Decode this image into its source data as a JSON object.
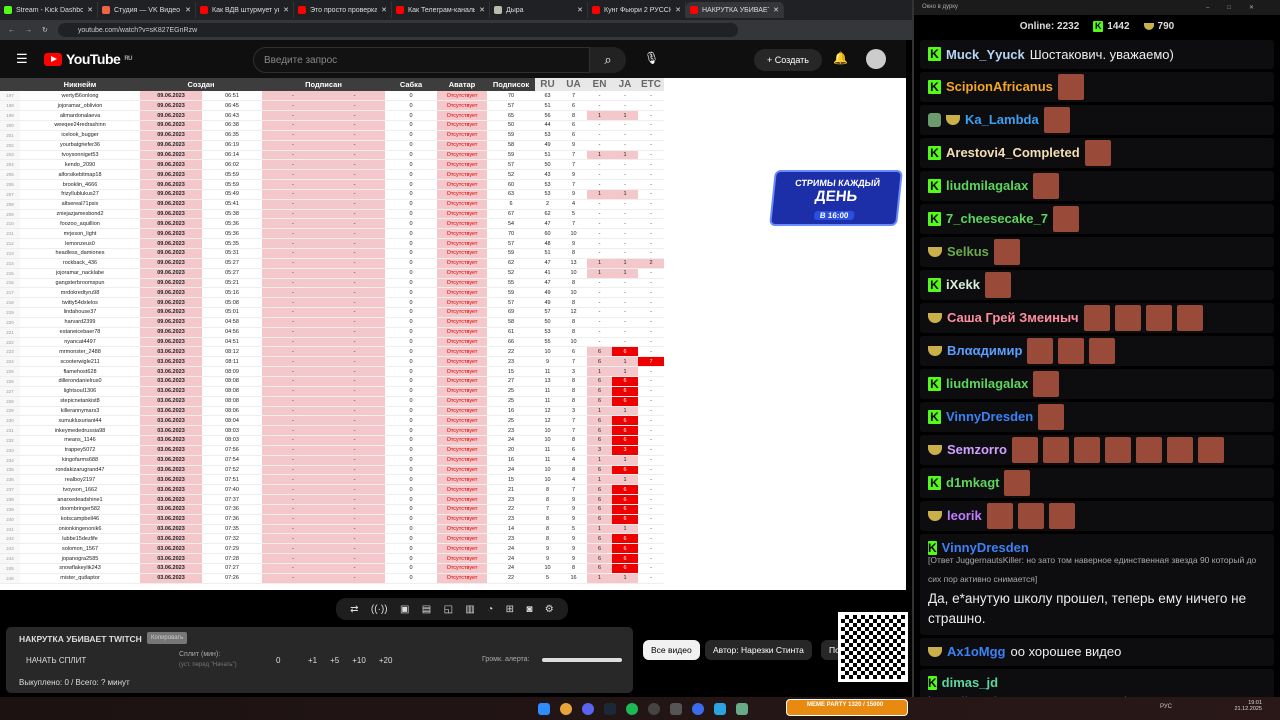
{
  "browser": {
    "tabs": [
      {
        "title": "Stream - Kick Dashboard",
        "color": "#53fc18"
      },
      {
        "title": "Студия — VK Видео Live",
        "color": "#e64"
      },
      {
        "title": "Как ВДВ штурмует укр",
        "color": "#f00"
      },
      {
        "title": "Это просто проверка",
        "color": "#f00"
      },
      {
        "title": "Как Телеграм-каналы",
        "color": "#f00"
      },
      {
        "title": "Дыра",
        "color": "#bba"
      },
      {
        "title": "Кунг Фьюри 2 РУССКАЯ",
        "color": "#f00"
      },
      {
        "title": "НАКРУТКА УБИВАЕТ",
        "color": "#f00",
        "active": true
      }
    ],
    "url": "youtube.com/watch?v=sK827EGnRzw"
  },
  "youtube": {
    "logo": "YouTube",
    "region": "RU",
    "search_placeholder": "Введите запрос",
    "create_label": "Создать"
  },
  "sheet": {
    "headers": [
      "Никнейм",
      "Создан",
      "Подписан",
      "Сабка",
      "Аватар",
      "Подписок",
      "RU",
      "UA",
      "EN",
      "JA",
      "ETC"
    ],
    "rows": [
      [
        "197",
        "wertyl56onlong",
        "09.06.2023",
        "06:51",
        "-",
        "-",
        "0",
        "Отсутствует",
        "70",
        "63",
        "7",
        "-",
        "-",
        "-"
      ],
      [
        "198",
        "jojoramar_oblivion",
        "09.06.2023",
        "06:45",
        "-",
        "-",
        "0",
        "Отсутствует",
        "57",
        "51",
        "6",
        "-",
        "-",
        "-"
      ],
      [
        "199",
        "alimardonalaeva",
        "09.06.2023",
        "06:43",
        "-",
        "-",
        "0",
        "Отсутствует",
        "65",
        "56",
        "8",
        "1",
        "1",
        "-"
      ],
      [
        "200",
        "weeqee24redrashinn",
        "09.06.2023",
        "06:38",
        "-",
        "-",
        "0",
        "Отсутствует",
        "50",
        "44",
        "6",
        "-",
        "-",
        "-"
      ],
      [
        "201",
        "icelook_bugger",
        "09.06.2023",
        "06:35",
        "-",
        "-",
        "0",
        "Отсутствует",
        "59",
        "53",
        "6",
        "-",
        "-",
        "-"
      ],
      [
        "202",
        "yourbatgriefer36",
        "09.06.2023",
        "06:19",
        "-",
        "-",
        "0",
        "Отсутствует",
        "58",
        "49",
        "9",
        "-",
        "-",
        "-"
      ],
      [
        "203",
        "tvoysonniget53",
        "09.06.2023",
        "06:14",
        "-",
        "-",
        "0",
        "Отсутствует",
        "59",
        "51",
        "7",
        "1",
        "1",
        "-"
      ],
      [
        "204",
        "kendo_2090",
        "09.06.2023",
        "06:02",
        "-",
        "-",
        "0",
        "Отсутствует",
        "57",
        "50",
        "7",
        "-",
        "-",
        "-"
      ],
      [
        "205",
        "alforsikebitmap18",
        "09.06.2023",
        "05:59",
        "-",
        "-",
        "0",
        "Отсутствует",
        "52",
        "43",
        "9",
        "-",
        "-",
        "-"
      ],
      [
        "206",
        "brooklin_4666",
        "09.06.2023",
        "05:59",
        "-",
        "-",
        "0",
        "Отсутствует",
        "60",
        "53",
        "7",
        "-",
        "-",
        "-"
      ],
      [
        "207",
        "frizyllublukus27",
        "09.06.2023",
        "05:49",
        "-",
        "-",
        "0",
        "Отсутствует",
        "63",
        "53",
        "9",
        "1",
        "1",
        "-"
      ],
      [
        "208",
        "altsereal71psix",
        "09.06.2023",
        "05:41",
        "-",
        "-",
        "0",
        "Отсутствует",
        "6",
        "2",
        "4",
        "-",
        "-",
        "-"
      ],
      [
        "209",
        "zniejazjamesbond2",
        "09.06.2023",
        "05:38",
        "-",
        "-",
        "0",
        "Отсутствует",
        "67",
        "62",
        "5",
        "-",
        "-",
        "-"
      ],
      [
        "210",
        "foozoo_aquillion",
        "09.06.2023",
        "05:36",
        "-",
        "-",
        "0",
        "Отсутствует",
        "54",
        "47",
        "7",
        "-",
        "-",
        "-"
      ],
      [
        "211",
        "mrjeson_light",
        "09.06.2023",
        "05:36",
        "-",
        "-",
        "0",
        "Отсутствует",
        "70",
        "60",
        "10",
        "-",
        "-",
        "-"
      ],
      [
        "212",
        "lemonzeus0",
        "09.06.2023",
        "05:35",
        "-",
        "-",
        "0",
        "Отсутствует",
        "57",
        "48",
        "9",
        "-",
        "-",
        "-"
      ],
      [
        "213",
        "headless_damiones",
        "09.06.2023",
        "05:31",
        "-",
        "-",
        "0",
        "Отсутствует",
        "59",
        "51",
        "8",
        "-",
        "-",
        "-"
      ],
      [
        "214",
        "rockback_436",
        "09.06.2023",
        "05:27",
        "-",
        "-",
        "0",
        "Отсутствует",
        "62",
        "47",
        "13",
        "1",
        "1",
        "2"
      ],
      [
        "215",
        "jojoramar_nacklabe",
        "09.06.2023",
        "05:27",
        "-",
        "-",
        "0",
        "Отсутствует",
        "52",
        "41",
        "10",
        "1",
        "1",
        "-"
      ],
      [
        "216",
        "gangsterbroomspun",
        "09.06.2023",
        "05:21",
        "-",
        "-",
        "0",
        "Отсутствует",
        "55",
        "47",
        "8",
        "-",
        "-",
        "-"
      ],
      [
        "217",
        "mrdokredtyru98",
        "09.06.2023",
        "05:16",
        "-",
        "-",
        "0",
        "Отсутствует",
        "59",
        "49",
        "10",
        "-",
        "-",
        "-"
      ],
      [
        "218",
        "twitty54dxlelos",
        "09.06.2023",
        "05:08",
        "-",
        "-",
        "0",
        "Отсутствует",
        "57",
        "49",
        "8",
        "-",
        "-",
        "-"
      ],
      [
        "219",
        "lindahouse37",
        "09.06.2023",
        "05:01",
        "-",
        "-",
        "0",
        "Отсутствует",
        "69",
        "57",
        "12",
        "-",
        "-",
        "-"
      ],
      [
        "220",
        "harvard2399",
        "09.06.2023",
        "04:58",
        "-",
        "-",
        "0",
        "Отсутствует",
        "58",
        "50",
        "8",
        "-",
        "-",
        "-"
      ],
      [
        "221",
        "estaneicebaer78",
        "09.06.2023",
        "04:56",
        "-",
        "-",
        "0",
        "Отсутствует",
        "61",
        "53",
        "8",
        "-",
        "-",
        "-"
      ],
      [
        "222",
        "nyancat4497",
        "09.06.2023",
        "04:51",
        "-",
        "-",
        "0",
        "Отсутствует",
        "66",
        "55",
        "10",
        "-",
        "-",
        "-"
      ],
      [
        "223",
        "mrmonster_2488",
        "03.06.2023",
        "08:12",
        "-",
        "-",
        "0",
        "Отсутствует",
        "22",
        "10",
        "6",
        "6",
        "6",
        "-"
      ],
      [
        "224",
        "scooterwigle211",
        "03.06.2023",
        "08:11",
        "-",
        "-",
        "0",
        "Отсутствует",
        "23",
        "9",
        "7",
        "6",
        "1",
        "7"
      ],
      [
        "225",
        "flamehost628",
        "03.06.2023",
        "08:09",
        "-",
        "-",
        "0",
        "Отсутствует",
        "15",
        "11",
        "3",
        "1",
        "1",
        "-"
      ],
      [
        "226",
        "dillerondanielrus0",
        "03.06.2023",
        "08:08",
        "-",
        "-",
        "0",
        "Отсутствует",
        "27",
        "13",
        "8",
        "6",
        "6",
        "-"
      ],
      [
        "227",
        "lightsoul1306",
        "03.06.2023",
        "08:08",
        "-",
        "-",
        "0",
        "Отсутствует",
        "25",
        "11",
        "8",
        "6",
        "6",
        "-"
      ],
      [
        "228",
        "stepicnetankist8",
        "03.06.2023",
        "08:08",
        "-",
        "-",
        "0",
        "Отсутствует",
        "25",
        "11",
        "8",
        "6",
        "6",
        "-"
      ],
      [
        "229",
        "killerannymars3",
        "03.06.2023",
        "08:06",
        "-",
        "-",
        "0",
        "Отсутствует",
        "16",
        "12",
        "3",
        "1",
        "1",
        "-"
      ],
      [
        "230",
        "xumukluxuriant44",
        "03.06.2023",
        "08:04",
        "-",
        "-",
        "0",
        "Отсутствует",
        "25",
        "12",
        "7",
        "6",
        "6",
        "-"
      ],
      [
        "231",
        "inkeymededrussia98",
        "03.06.2023",
        "08:03",
        "-",
        "-",
        "0",
        "Отсутствует",
        "23",
        "10",
        "7",
        "6",
        "6",
        "-"
      ],
      [
        "232",
        "means_1146",
        "03.06.2023",
        "08:03",
        "-",
        "-",
        "0",
        "Отсутствует",
        "24",
        "10",
        "8",
        "6",
        "6",
        "-"
      ],
      [
        "233",
        "trappey5072",
        "03.06.2023",
        "07:56",
        "-",
        "-",
        "0",
        "Отсутствует",
        "20",
        "11",
        "6",
        "3",
        "3",
        "-"
      ],
      [
        "234",
        "kingofarms688",
        "03.06.2023",
        "07:54",
        "-",
        "-",
        "0",
        "Отсутствует",
        "16",
        "11",
        "4",
        "1",
        "1",
        "-"
      ],
      [
        "235",
        "rondakizarugrand47",
        "03.06.2023",
        "07:52",
        "-",
        "-",
        "0",
        "Отсутствует",
        "24",
        "10",
        "8",
        "6",
        "6",
        "-"
      ],
      [
        "236",
        "realboy2197",
        "03.06.2023",
        "07:51",
        "-",
        "-",
        "0",
        "Отсутствует",
        "15",
        "10",
        "4",
        "1",
        "1",
        "-"
      ],
      [
        "237",
        "tvoyson_1662",
        "03.06.2023",
        "07:40",
        "-",
        "-",
        "0",
        "Отсутствует",
        "21",
        "8",
        "7",
        "6",
        "6",
        "-"
      ],
      [
        "238",
        "anarxedeadshine1",
        "03.06.2023",
        "07:37",
        "-",
        "-",
        "0",
        "Отсутствует",
        "23",
        "8",
        "9",
        "6",
        "6",
        "-"
      ],
      [
        "239",
        "doombringer582",
        "03.06.2023",
        "07:36",
        "-",
        "-",
        "0",
        "Отсутствует",
        "22",
        "7",
        "9",
        "6",
        "6",
        "-"
      ],
      [
        "240",
        "kotscampbell46",
        "03.06.2023",
        "07:36",
        "-",
        "-",
        "0",
        "Отсутствует",
        "23",
        "8",
        "9",
        "6",
        "6",
        "-"
      ],
      [
        "241",
        "onionkingenonik6",
        "03.06.2023",
        "07:35",
        "-",
        "-",
        "0",
        "Отсутствует",
        "14",
        "8",
        "5",
        "1",
        "1",
        "-"
      ],
      [
        "242",
        "lubbe15dezlife",
        "03.06.2023",
        "07:32",
        "-",
        "-",
        "0",
        "Отсутствует",
        "23",
        "8",
        "9",
        "6",
        "6",
        "-"
      ],
      [
        "243",
        "solomon_1567",
        "03.06.2023",
        "07:29",
        "-",
        "-",
        "0",
        "Отсутствует",
        "24",
        "9",
        "9",
        "6",
        "6",
        "-"
      ],
      [
        "244",
        "jopanogra2585",
        "03.06.2023",
        "07:28",
        "-",
        "-",
        "0",
        "Отсутствует",
        "24",
        "9",
        "9",
        "6",
        "6",
        "-"
      ],
      [
        "245",
        "snowflakeylik243",
        "03.06.2023",
        "07:27",
        "-",
        "-",
        "0",
        "Отсутствует",
        "24",
        "10",
        "8",
        "6",
        "6",
        "-"
      ],
      [
        "246",
        "mister_qutlaptor",
        "03.06.2023",
        "07:26",
        "-",
        "-",
        "0",
        "Отсутствует",
        "22",
        "5",
        "16",
        "1",
        "1",
        "-"
      ]
    ]
  },
  "banner": {
    "line1": "СТРИМЫ КАЖДЫЙ",
    "line2": "ДЕНЬ",
    "line3": "В 16:00"
  },
  "panel": {
    "title": "НАКРУТКА УБИВАЕТ TWITCH",
    "copy_label": "Копировать",
    "start_split": "НАЧАТЬ СПЛИТ",
    "split_label": "Сплит (мин):",
    "split_hint": "(уст. перед \"Начать\")",
    "split_value": "0",
    "increments": [
      "+1",
      "+5",
      "+10",
      "+20"
    ],
    "volume_label": "Громк. алерта:",
    "volume": 1.0,
    "bought": "Выкуплено: 0 / Всего: ? минут"
  },
  "chips": [
    "Все видео",
    "Автор: Нарезки Стинта",
    "По"
  ],
  "meme_party": {
    "label": "MEME PARTY",
    "count": "1320 / 15000"
  },
  "right": {
    "window_title": "Окно в дурку",
    "online_label": "Online:",
    "online": "2232",
    "kick_count": "1442",
    "sub_count": "790",
    "messages": [
      {
        "badges": [
          "kick"
        ],
        "user": "Muck_Yyuck",
        "color": "#b8d4f5",
        "text": "Шостакович. уважаемо)",
        "emotes": 0
      },
      {
        "badges": [
          "kick"
        ],
        "user": "ScipionAfricanus",
        "color": "#f5a623",
        "emotes": 1
      },
      {
        "badges": [
          "mod",
          "sub"
        ],
        "user": "Ka_Lambda",
        "color": "#3ba0f0",
        "emotes": 1
      },
      {
        "badges": [
          "kick"
        ],
        "user": "Arestovi4_Completed",
        "color": "#f5deb3",
        "emotes": 1
      },
      {
        "badges": [
          "kick"
        ],
        "user": "liudmilagalax",
        "color": "#5cd65c",
        "emotes": 1
      },
      {
        "badges": [
          "kick"
        ],
        "user": "7_cheesecake_7",
        "color": "#5cd65c",
        "emotes": 1
      },
      {
        "badges": [
          "sub"
        ],
        "user": "Selkus",
        "color": "#6aaa4a",
        "emotes": 1
      },
      {
        "badges": [
          "kick"
        ],
        "user": "iXekk",
        "color": "#d8f0d8",
        "emotes": 1
      },
      {
        "badges": [
          "sub"
        ],
        "user": "Саша Грей Змеиныч",
        "color": "#ff8fa0",
        "emotes": 4
      },
      {
        "badges": [
          "sub"
        ],
        "user": "Влααдимир",
        "color": "#5aa0ff",
        "emotes": 3
      },
      {
        "badges": [
          "kick"
        ],
        "user": "liudmilagalax",
        "color": "#5cd65c",
        "emotes": 1
      },
      {
        "badges": [
          "kick"
        ],
        "user": "VinnyDresden",
        "color": "#3b82f6",
        "emotes": 1
      },
      {
        "badges": [
          "sub"
        ],
        "user": "Semzorro",
        "color": "#d0a0ff",
        "emotes": 7
      },
      {
        "badges": [
          "kick"
        ],
        "user": "d1mkagt",
        "color": "#5cd65c",
        "emotes": 1
      },
      {
        "badges": [
          "sub"
        ],
        "user": "leorik",
        "color": "#c07cff",
        "emotes": 3
      },
      {
        "badges": [
          "kick"
        ],
        "user": "VinnyDresden",
        "color": "#3b82f6",
        "reply": "[Ответ JuggernautsKiller: но зато том наверное единственная звезда 90 который до сих пор активно снимается]",
        "text": "Да, е*анутую школу прошел, теперь ему ничего не страшно.",
        "emotes": 0
      },
      {
        "badges": [
          "sub"
        ],
        "user": "Ax1oMgg",
        "color": "#3b82f6",
        "text": "оо хорошее видео",
        "emotes": 0
      },
      {
        "badges": [
          "kick"
        ],
        "user": "dimas_jd",
        "color": "#5cd6a0",
        "link": "https://t.me/ORGINALDANKEZT1/66128",
        "emotes": 0
      }
    ]
  },
  "tray": {
    "lang": "РУС",
    "time": "19:01",
    "date": "21.12.2025"
  }
}
